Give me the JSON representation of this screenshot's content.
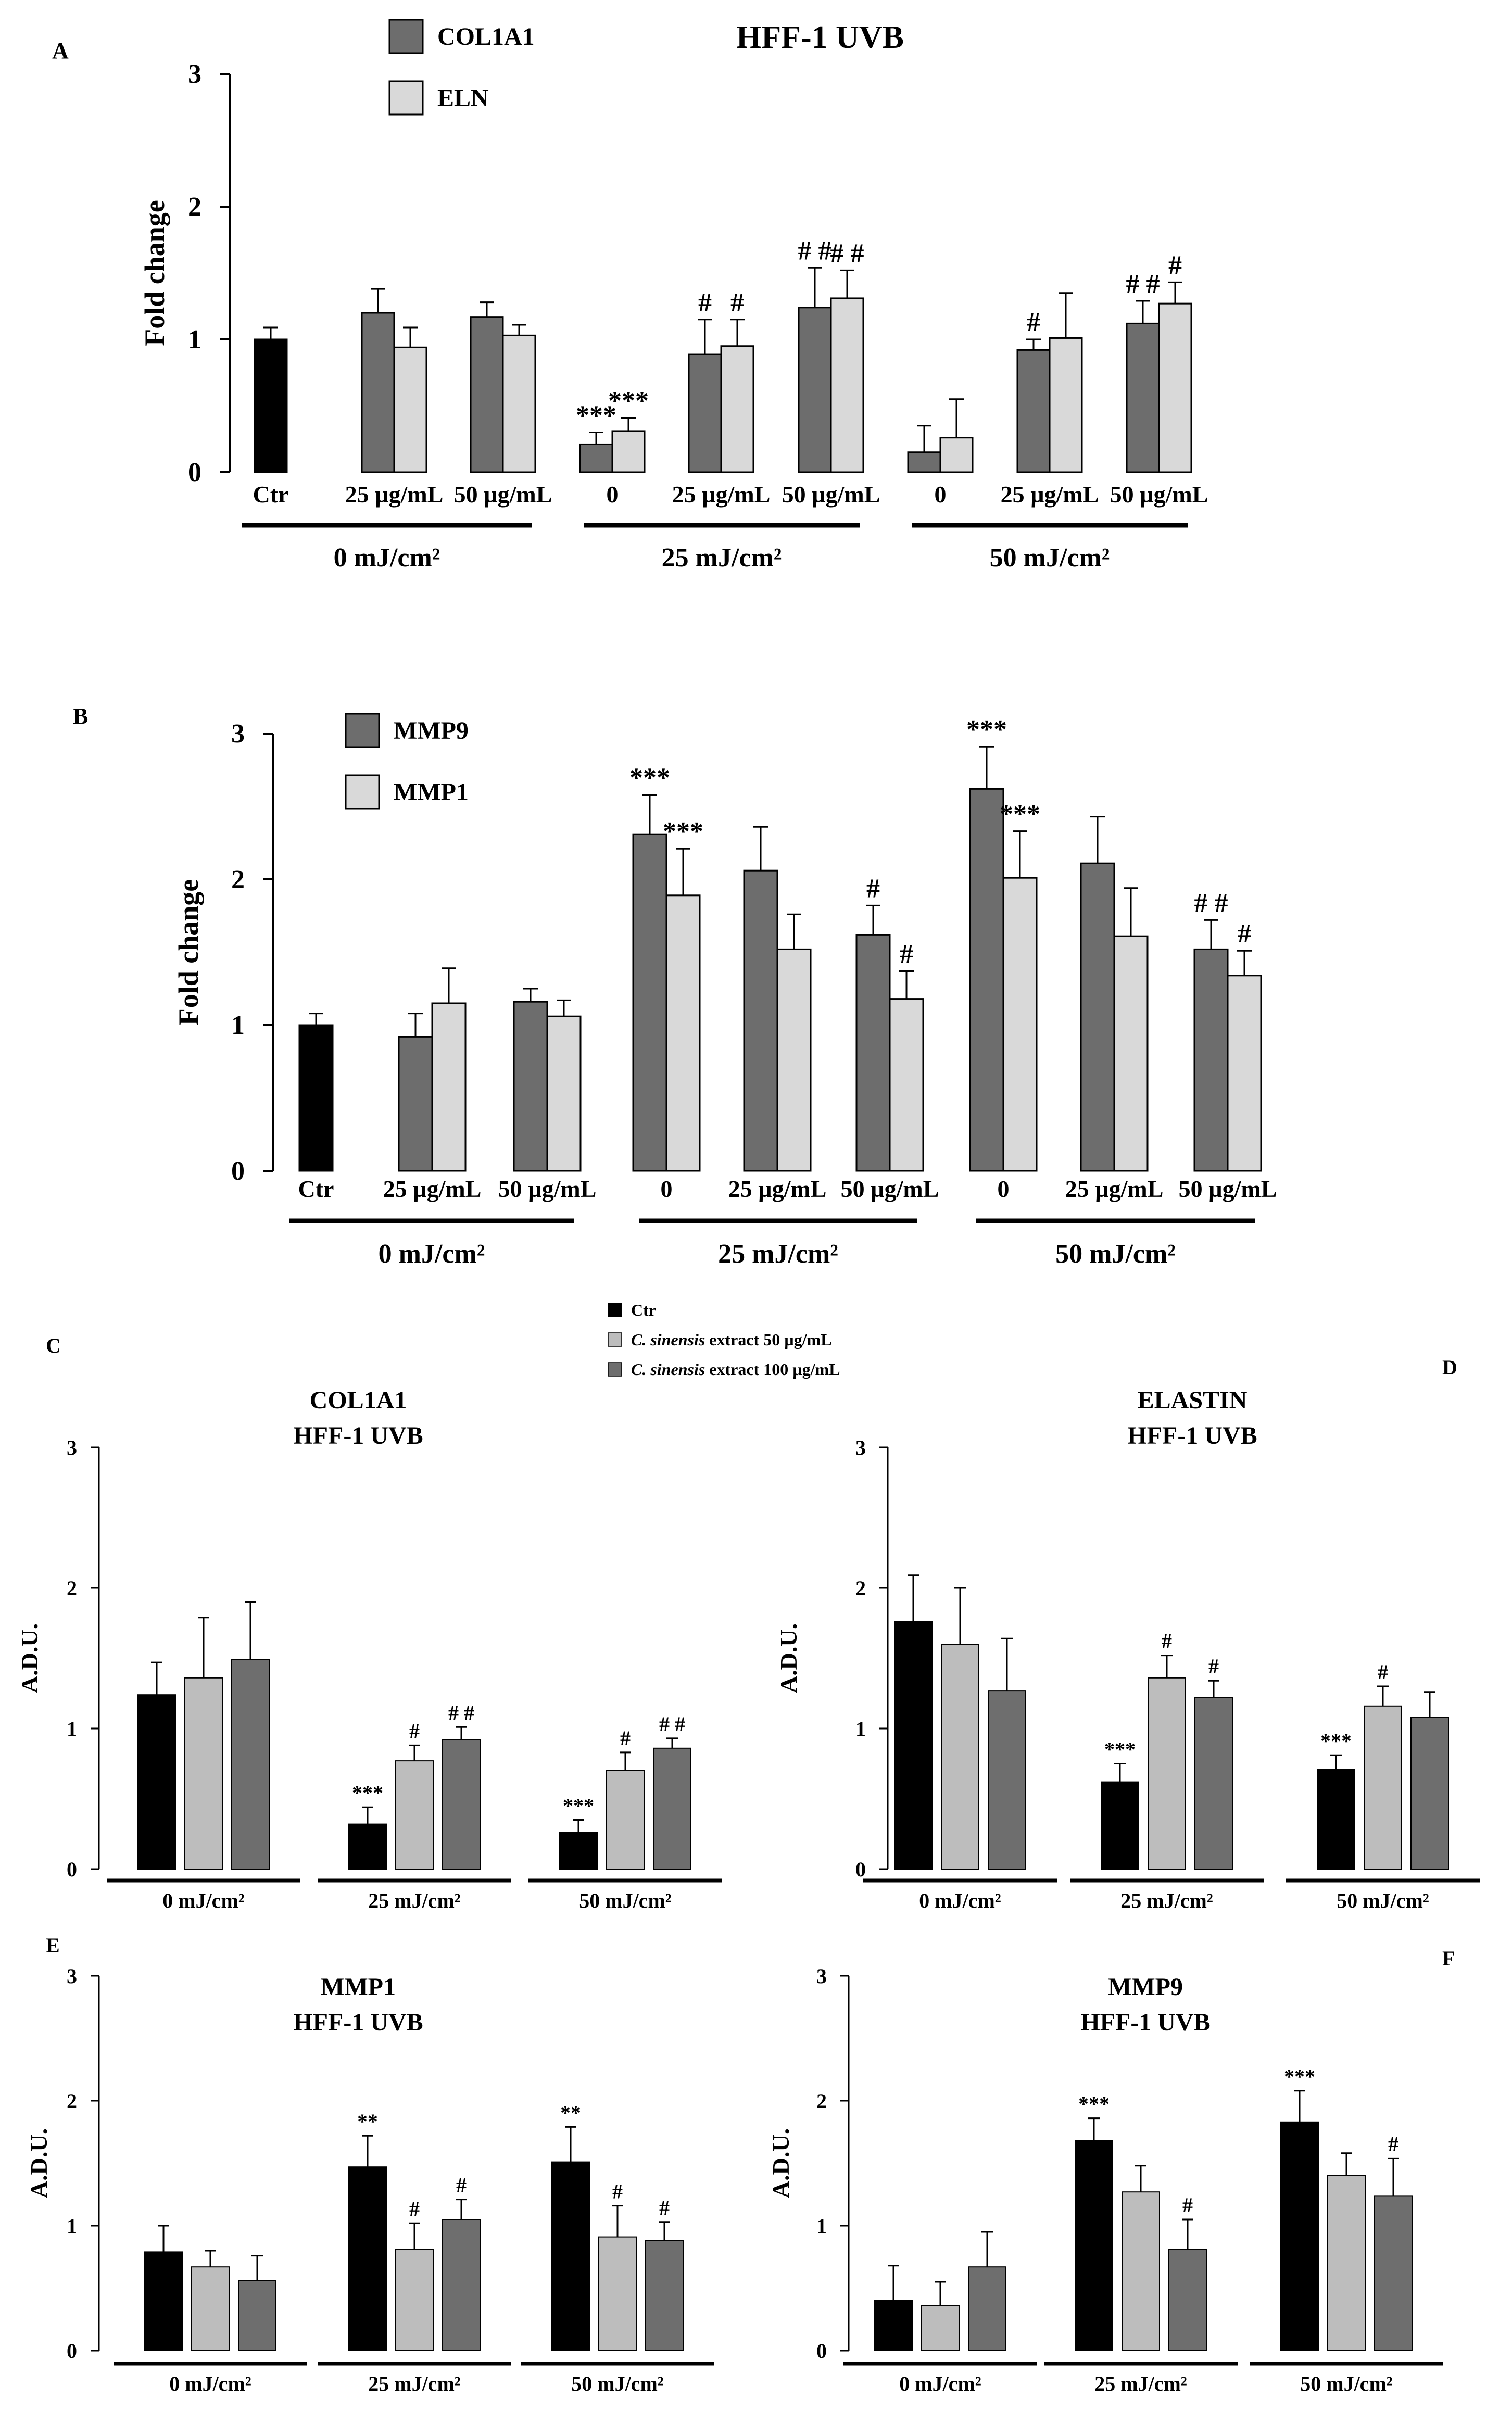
{
  "figure_title": "HFF-1 UVB",
  "colors": {
    "ctr": "#000000",
    "dark": "#6d6d6d",
    "light": "#d9d9d9",
    "c_light": "#bdbdbd",
    "c_dark": "#6e6e6e",
    "axis": "#000000"
  },
  "chart_data": [
    {
      "id": "A",
      "panel_label": "A",
      "type": "bar",
      "title": "HFF-1 UVB",
      "ylabel": "Fold change",
      "ylim": [
        0,
        3
      ],
      "yticks": [
        "0",
        "1",
        "2",
        "3"
      ],
      "legend": [
        {
          "name": "COL1A1",
          "color": "#6d6d6d"
        },
        {
          "name": "ELN",
          "color": "#d9d9d9"
        }
      ],
      "groups": [
        {
          "label": "Ctr",
          "bars": [
            {
              "series": "Ctr",
              "color": "#000000",
              "value": 1.0,
              "err": 0.09,
              "annot": ""
            }
          ]
        },
        {
          "label": "25 µg/mL",
          "bars": [
            {
              "series": "COL1A1",
              "color": "#6d6d6d",
              "value": 1.2,
              "err": 0.18,
              "annot": ""
            },
            {
              "series": "ELN",
              "color": "#d9d9d9",
              "value": 0.94,
              "err": 0.15,
              "annot": ""
            }
          ]
        },
        {
          "label": "50 µg/mL",
          "bars": [
            {
              "series": "COL1A1",
              "color": "#6d6d6d",
              "value": 1.17,
              "err": 0.11,
              "annot": ""
            },
            {
              "series": "ELN",
              "color": "#d9d9d9",
              "value": 1.03,
              "err": 0.08,
              "annot": ""
            }
          ]
        },
        {
          "label": "0",
          "bars": [
            {
              "series": "COL1A1",
              "color": "#6d6d6d",
              "value": 0.21,
              "err": 0.09,
              "annot": "***"
            },
            {
              "series": "ELN",
              "color": "#d9d9d9",
              "value": 0.31,
              "err": 0.1,
              "annot": "***"
            }
          ]
        },
        {
          "label": "25 µg/mL",
          "bars": [
            {
              "series": "COL1A1",
              "color": "#6d6d6d",
              "value": 0.89,
              "err": 0.26,
              "annot": "#"
            },
            {
              "series": "ELN",
              "color": "#d9d9d9",
              "value": 0.95,
              "err": 0.2,
              "annot": "#"
            }
          ]
        },
        {
          "label": "50 µg/mL",
          "bars": [
            {
              "series": "COL1A1",
              "color": "#6d6d6d",
              "value": 1.24,
              "err": 0.3,
              "annot": "# #"
            },
            {
              "series": "ELN",
              "color": "#d9d9d9",
              "value": 1.31,
              "err": 0.21,
              "annot": "# #"
            }
          ]
        },
        {
          "label": "0",
          "bars": [
            {
              "series": "COL1A1",
              "color": "#6d6d6d",
              "value": 0.15,
              "err": 0.2,
              "annot": ""
            },
            {
              "series": "ELN",
              "color": "#d9d9d9",
              "value": 0.26,
              "err": 0.29,
              "annot": ""
            }
          ]
        },
        {
          "label": "25 µg/mL",
          "bars": [
            {
              "series": "COL1A1",
              "color": "#6d6d6d",
              "value": 0.92,
              "err": 0.08,
              "annot": "#"
            },
            {
              "series": "ELN",
              "color": "#d9d9d9",
              "value": 1.01,
              "err": 0.34,
              "annot": ""
            }
          ]
        },
        {
          "label": "50 µg/mL",
          "bars": [
            {
              "series": "COL1A1",
              "color": "#6d6d6d",
              "value": 1.12,
              "err": 0.17,
              "annot": "# #"
            },
            {
              "series": "ELN",
              "color": "#d9d9d9",
              "value": 1.27,
              "err": 0.16,
              "annot": "#"
            }
          ]
        }
      ],
      "dose_labels": [
        {
          "label": "0 mJ/cm²",
          "from": 0,
          "to": 2
        },
        {
          "label": "25 mJ/cm²",
          "from": 3,
          "to": 5
        },
        {
          "label": "50 mJ/cm²",
          "from": 6,
          "to": 8
        }
      ]
    },
    {
      "id": "B",
      "panel_label": "B",
      "type": "bar",
      "title": "",
      "ylabel": "Fold change",
      "ylim": [
        0,
        3
      ],
      "yticks": [
        "0",
        "1",
        "2",
        "3"
      ],
      "legend": [
        {
          "name": "MMP9",
          "color": "#6d6d6d"
        },
        {
          "name": "MMP1",
          "color": "#d9d9d9"
        }
      ],
      "groups": [
        {
          "label": "Ctr",
          "bars": [
            {
              "series": "Ctr",
              "color": "#000000",
              "value": 1.0,
              "err": 0.08,
              "annot": ""
            }
          ]
        },
        {
          "label": "25 µg/mL",
          "bars": [
            {
              "series": "MMP9",
              "color": "#6d6d6d",
              "value": 0.92,
              "err": 0.16,
              "annot": ""
            },
            {
              "series": "MMP1",
              "color": "#d9d9d9",
              "value": 1.15,
              "err": 0.24,
              "annot": ""
            }
          ]
        },
        {
          "label": "50 µg/mL",
          "bars": [
            {
              "series": "MMP9",
              "color": "#6d6d6d",
              "value": 1.16,
              "err": 0.09,
              "annot": ""
            },
            {
              "series": "MMP1",
              "color": "#d9d9d9",
              "value": 1.06,
              "err": 0.11,
              "annot": ""
            }
          ]
        },
        {
          "label": "0",
          "bars": [
            {
              "series": "MMP9",
              "color": "#6d6d6d",
              "value": 2.31,
              "err": 0.27,
              "annot": "***"
            },
            {
              "series": "MMP1",
              "color": "#d9d9d9",
              "value": 1.89,
              "err": 0.32,
              "annot": "***"
            }
          ]
        },
        {
          "label": "25 µg/mL",
          "bars": [
            {
              "series": "MMP9",
              "color": "#6d6d6d",
              "value": 2.06,
              "err": 0.3,
              "annot": ""
            },
            {
              "series": "MMP1",
              "color": "#d9d9d9",
              "value": 1.52,
              "err": 0.24,
              "annot": ""
            }
          ]
        },
        {
          "label": "50 µg/mL",
          "bars": [
            {
              "series": "MMP9",
              "color": "#6d6d6d",
              "value": 1.62,
              "err": 0.2,
              "annot": "#"
            },
            {
              "series": "MMP1",
              "color": "#d9d9d9",
              "value": 1.18,
              "err": 0.19,
              "annot": "#"
            }
          ]
        },
        {
          "label": "0",
          "bars": [
            {
              "series": "MMP9",
              "color": "#6d6d6d",
              "value": 2.62,
              "err": 0.29,
              "annot": "***"
            },
            {
              "series": "MMP1",
              "color": "#d9d9d9",
              "value": 2.01,
              "err": 0.32,
              "annot": "***"
            }
          ]
        },
        {
          "label": "25 µg/mL",
          "bars": [
            {
              "series": "MMP9",
              "color": "#6d6d6d",
              "value": 2.11,
              "err": 0.32,
              "annot": ""
            },
            {
              "series": "MMP1",
              "color": "#d9d9d9",
              "value": 1.61,
              "err": 0.33,
              "annot": ""
            }
          ]
        },
        {
          "label": "50 µg/mL",
          "bars": [
            {
              "series": "MMP9",
              "color": "#6d6d6d",
              "value": 1.52,
              "err": 0.2,
              "annot": "# #"
            },
            {
              "series": "MMP1",
              "color": "#d9d9d9",
              "value": 1.34,
              "err": 0.17,
              "annot": "#"
            }
          ]
        }
      ],
      "dose_labels": [
        {
          "label": "0 mJ/cm²",
          "from": 0,
          "to": 2
        },
        {
          "label": "25 mJ/cm²",
          "from": 3,
          "to": 5
        },
        {
          "label": "50 mJ/cm²",
          "from": 6,
          "to": 8
        }
      ]
    },
    {
      "id": "C",
      "panel_label": "C",
      "type": "bar",
      "title": "COL1A1",
      "subtitle": "HFF-1 UVB",
      "ylabel": "A.D.U.",
      "ylim": [
        0,
        3
      ],
      "yticks": [
        "0",
        "1",
        "2",
        "3"
      ],
      "groups": [
        {
          "label": "0 mJ/cm²",
          "bars": [
            {
              "value": 1.24,
              "err": 0.23,
              "annot": ""
            },
            {
              "value": 1.36,
              "err": 0.43,
              "annot": ""
            },
            {
              "value": 1.49,
              "err": 0.41,
              "annot": ""
            }
          ]
        },
        {
          "label": "25 mJ/cm²",
          "bars": [
            {
              "value": 0.32,
              "err": 0.12,
              "annot": "***"
            },
            {
              "value": 0.77,
              "err": 0.11,
              "annot": "#"
            },
            {
              "value": 0.92,
              "err": 0.09,
              "annot": "# #"
            }
          ]
        },
        {
          "label": "50 mJ/cm²",
          "bars": [
            {
              "value": 0.26,
              "err": 0.09,
              "annot": "***"
            },
            {
              "value": 0.7,
              "err": 0.13,
              "annot": "#"
            },
            {
              "value": 0.86,
              "err": 0.07,
              "annot": "# #"
            }
          ]
        }
      ]
    },
    {
      "id": "D",
      "panel_label": "D",
      "type": "bar",
      "title": "ELASTIN",
      "subtitle": "HFF-1 UVB",
      "ylabel": "A.D.U.",
      "ylim": [
        0,
        3
      ],
      "yticks": [
        "0",
        "1",
        "2",
        "3"
      ],
      "groups": [
        {
          "label": "0 mJ/cm²",
          "bars": [
            {
              "value": 1.76,
              "err": 0.33,
              "annot": ""
            },
            {
              "value": 1.6,
              "err": 0.4,
              "annot": ""
            },
            {
              "value": 1.27,
              "err": 0.37,
              "annot": ""
            }
          ]
        },
        {
          "label": "25 mJ/cm²",
          "bars": [
            {
              "value": 0.62,
              "err": 0.13,
              "annot": "***"
            },
            {
              "value": 1.36,
              "err": 0.16,
              "annot": "#"
            },
            {
              "value": 1.22,
              "err": 0.12,
              "annot": "#"
            }
          ]
        },
        {
          "label": "50 mJ/cm²",
          "bars": [
            {
              "value": 0.71,
              "err": 0.1,
              "annot": "***"
            },
            {
              "value": 1.16,
              "err": 0.14,
              "annot": "#"
            },
            {
              "value": 1.08,
              "err": 0.18,
              "annot": ""
            }
          ]
        }
      ]
    },
    {
      "id": "E",
      "panel_label": "E",
      "type": "bar",
      "title": "MMP1",
      "subtitle": "HFF-1 UVB",
      "ylabel": "A.D.U.",
      "ylim": [
        0,
        3
      ],
      "yticks": [
        "0",
        "1",
        "2",
        "3"
      ],
      "groups": [
        {
          "label": "0 mJ/cm²",
          "bars": [
            {
              "value": 0.79,
              "err": 0.21,
              "annot": ""
            },
            {
              "value": 0.67,
              "err": 0.13,
              "annot": ""
            },
            {
              "value": 0.56,
              "err": 0.2,
              "annot": ""
            }
          ]
        },
        {
          "label": "25 mJ/cm²",
          "bars": [
            {
              "value": 1.47,
              "err": 0.25,
              "annot": "**"
            },
            {
              "value": 0.81,
              "err": 0.21,
              "annot": "#"
            },
            {
              "value": 1.05,
              "err": 0.16,
              "annot": "#"
            }
          ]
        },
        {
          "label": "50 mJ/cm²",
          "bars": [
            {
              "value": 1.51,
              "err": 0.28,
              "annot": "**"
            },
            {
              "value": 0.91,
              "err": 0.25,
              "annot": "#"
            },
            {
              "value": 0.88,
              "err": 0.15,
              "annot": "#"
            }
          ]
        }
      ]
    },
    {
      "id": "F",
      "panel_label": "F",
      "type": "bar",
      "title": "MMP9",
      "subtitle": "HFF-1 UVB",
      "ylabel": "A.D.U.",
      "ylim": [
        0,
        3
      ],
      "yticks": [
        "0",
        "1",
        "2",
        "3"
      ],
      "groups": [
        {
          "label": "0 mJ/cm²",
          "bars": [
            {
              "value": 0.4,
              "err": 0.28,
              "annot": ""
            },
            {
              "value": 0.36,
              "err": 0.19,
              "annot": ""
            },
            {
              "value": 0.67,
              "err": 0.28,
              "annot": ""
            }
          ]
        },
        {
          "label": "25 mJ/cm²",
          "bars": [
            {
              "value": 1.68,
              "err": 0.18,
              "annot": "***"
            },
            {
              "value": 1.27,
              "err": 0.21,
              "annot": ""
            },
            {
              "value": 0.81,
              "err": 0.24,
              "annot": "#"
            }
          ]
        },
        {
          "label": "50 mJ/cm²",
          "bars": [
            {
              "value": 1.83,
              "err": 0.25,
              "annot": "***"
            },
            {
              "value": 1.4,
              "err": 0.18,
              "annot": ""
            },
            {
              "value": 1.24,
              "err": 0.3,
              "annot": "#"
            }
          ]
        }
      ]
    }
  ],
  "cf_legend": [
    {
      "name_normal": "",
      "name_italic": "",
      "name_rest": "Ctr",
      "color": "#000000"
    },
    {
      "name_normal": "",
      "name_italic": "C. sinensis",
      "name_rest": " extract 50 µg/mL",
      "color": "#bdbdbd"
    },
    {
      "name_normal": "",
      "name_italic": "C. sinensis",
      "name_rest": " extract 100 µg/mL",
      "color": "#6e6e6e"
    }
  ]
}
